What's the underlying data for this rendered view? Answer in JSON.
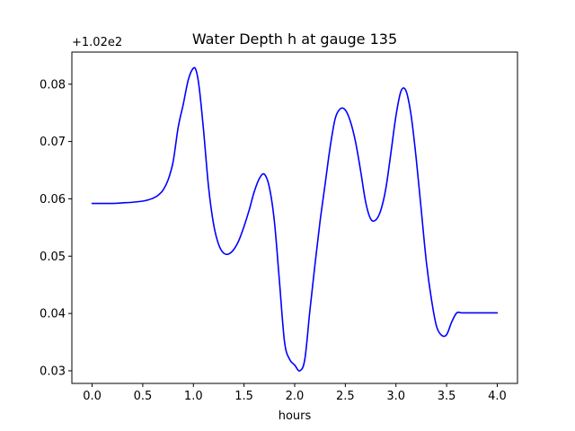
{
  "chart_data": {
    "type": "line",
    "title": "Water Depth h at gauge 135",
    "xlabel": "hours",
    "ylabel": "",
    "offset_label": "+1.02e2",
    "y_offset": 102,
    "xlim": [
      -0.2,
      4.2
    ],
    "ylim": [
      0.0278,
      0.0856
    ],
    "xticks": [
      0.0,
      0.5,
      1.0,
      1.5,
      2.0,
      2.5,
      3.0,
      3.5,
      4.0
    ],
    "xtick_labels": [
      "0.0",
      "0.5",
      "1.0",
      "1.5",
      "2.0",
      "2.5",
      "3.0",
      "3.5",
      "4.0"
    ],
    "yticks": [
      0.03,
      0.04,
      0.05,
      0.06,
      0.07,
      0.08
    ],
    "ytick_labels": [
      "0.03",
      "0.04",
      "0.05",
      "0.06",
      "0.07",
      "0.08"
    ],
    "grid": false,
    "line_color": "#0000ff",
    "series": [
      {
        "x": [
          0.0,
          0.1,
          0.2,
          0.3,
          0.4,
          0.5,
          0.55,
          0.6,
          0.65,
          0.7,
          0.75,
          0.8,
          0.85,
          0.9,
          0.95,
          1.0,
          1.03,
          1.06,
          1.1,
          1.15,
          1.2,
          1.25,
          1.3,
          1.35,
          1.4,
          1.45,
          1.5,
          1.55,
          1.6,
          1.65,
          1.7,
          1.75,
          1.8,
          1.85,
          1.9,
          1.95,
          2.0,
          2.05,
          2.1,
          2.15,
          2.2,
          2.25,
          2.3,
          2.35,
          2.4,
          2.45,
          2.5,
          2.55,
          2.6,
          2.65,
          2.7,
          2.75,
          2.8,
          2.85,
          2.9,
          2.95,
          3.0,
          3.05,
          3.1,
          3.15,
          3.2,
          3.25,
          3.3,
          3.35,
          3.4,
          3.45,
          3.5,
          3.55,
          3.6,
          3.65,
          3.7,
          3.75,
          3.8,
          3.85,
          3.9,
          3.95,
          4.0
        ],
        "y": [
          0.0592,
          0.0592,
          0.0592,
          0.0593,
          0.0594,
          0.0596,
          0.0598,
          0.0601,
          0.0606,
          0.0615,
          0.0633,
          0.0665,
          0.0725,
          0.0765,
          0.0808,
          0.0828,
          0.0822,
          0.079,
          0.072,
          0.062,
          0.0555,
          0.052,
          0.0505,
          0.0504,
          0.0512,
          0.0528,
          0.0552,
          0.058,
          0.0612,
          0.0635,
          0.0643,
          0.062,
          0.056,
          0.0455,
          0.035,
          0.032,
          0.031,
          0.03,
          0.032,
          0.0405,
          0.0485,
          0.056,
          0.0625,
          0.069,
          0.074,
          0.0757,
          0.0755,
          0.0735,
          0.07,
          0.065,
          0.0595,
          0.0565,
          0.0563,
          0.058,
          0.0618,
          0.068,
          0.0745,
          0.0788,
          0.0788,
          0.0745,
          0.067,
          0.058,
          0.049,
          0.0425,
          0.0378,
          0.0362,
          0.0363,
          0.0385,
          0.0401,
          0.0401,
          0.0401,
          0.0401,
          0.0401,
          0.0401,
          0.0401,
          0.0401,
          0.0401
        ]
      }
    ]
  }
}
